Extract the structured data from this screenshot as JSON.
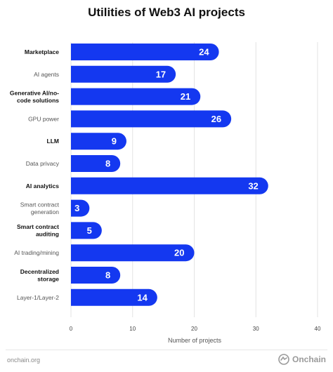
{
  "page": {
    "title": "Utilities of Web3 AI projects",
    "source": "onchain.org",
    "brand": "Onchain"
  },
  "colors": {
    "bar": "#1438f0",
    "grid": "#e3e3e3",
    "bar_text": "#ffffff"
  },
  "chart_data": {
    "type": "bar",
    "orientation": "horizontal",
    "title": "Utilities of Web3 AI projects",
    "xlabel": "Number of projects",
    "ylabel": "",
    "xlim": [
      0,
      40
    ],
    "xticks": [
      0,
      10,
      20,
      30,
      40
    ],
    "grid": true,
    "categories": [
      {
        "label": [
          "Marketplace"
        ],
        "bold": true
      },
      {
        "label": [
          "AI agents"
        ],
        "bold": false
      },
      {
        "label": [
          "Generative AI/no-",
          "code solutions"
        ],
        "bold": true
      },
      {
        "label": [
          "GPU power"
        ],
        "bold": false
      },
      {
        "label": [
          "LLM"
        ],
        "bold": true
      },
      {
        "label": [
          "Data privacy"
        ],
        "bold": false
      },
      {
        "label": [
          "AI analytics"
        ],
        "bold": true
      },
      {
        "label": [
          "Smart contract",
          "generation"
        ],
        "bold": false
      },
      {
        "label": [
          "Smart contract",
          "auditing"
        ],
        "bold": true
      },
      {
        "label": [
          "AI trading/mining"
        ],
        "bold": false
      },
      {
        "label": [
          "Decentralized",
          "storage"
        ],
        "bold": true
      },
      {
        "label": [
          "Layer-1/Layer-2"
        ],
        "bold": false
      }
    ],
    "values": [
      24,
      17,
      21,
      26,
      9,
      8,
      32,
      3,
      5,
      20,
      8,
      14
    ]
  }
}
